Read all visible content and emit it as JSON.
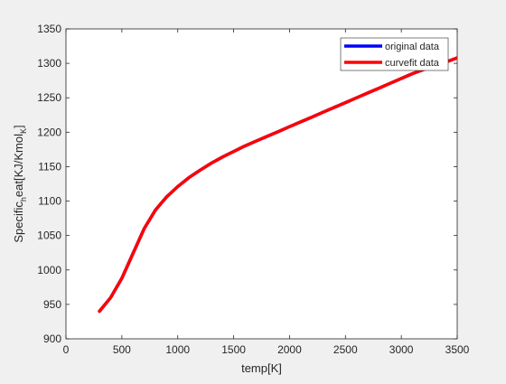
{
  "chart_data": {
    "type": "line",
    "title": "",
    "xlabel": "temp[K]",
    "ylabel_parts": [
      "Specific",
      "h",
      "eat[KJ/Kmol",
      "K",
      "]"
    ],
    "xlim": [
      0,
      3500
    ],
    "ylim": [
      900,
      1350
    ],
    "xticks": [
      0,
      500,
      1000,
      1500,
      2000,
      2500,
      3000,
      3500
    ],
    "yticks": [
      900,
      950,
      1000,
      1050,
      1100,
      1150,
      1200,
      1250,
      1300,
      1350
    ],
    "grid": false,
    "legend_position": "top-right",
    "series": [
      {
        "name": "original data",
        "color": "#0000ff",
        "x": [
          300,
          400,
          500,
          600,
          700,
          800,
          900,
          1000,
          1100,
          1200,
          1300,
          1400,
          1500,
          1600,
          1700,
          1800,
          1900,
          2000,
          2100,
          2200,
          2300,
          2400,
          2500,
          2600,
          2700,
          2800,
          2900,
          3000,
          3100,
          3200,
          3300,
          3400,
          3500
        ],
        "y": [
          940,
          960,
          988,
          1024,
          1060,
          1087,
          1106,
          1121,
          1134,
          1145,
          1155,
          1164,
          1172,
          1180,
          1187,
          1194,
          1201,
          1208,
          1215,
          1222,
          1229,
          1236,
          1243,
          1250,
          1257,
          1264,
          1271,
          1278,
          1285,
          1291,
          1296,
          1302,
          1308
        ]
      },
      {
        "name": "curvefit data",
        "color": "#ff0000",
        "x": [
          300,
          400,
          500,
          600,
          700,
          800,
          900,
          1000,
          1100,
          1200,
          1300,
          1400,
          1500,
          1600,
          1700,
          1800,
          1900,
          2000,
          2100,
          2200,
          2300,
          2400,
          2500,
          2600,
          2700,
          2800,
          2900,
          3000,
          3100,
          3200,
          3300,
          3400,
          3500
        ],
        "y": [
          940,
          960,
          988,
          1024,
          1060,
          1087,
          1106,
          1121,
          1134,
          1145,
          1155,
          1164,
          1172,
          1180,
          1187,
          1194,
          1201,
          1208,
          1215,
          1222,
          1229,
          1236,
          1243,
          1250,
          1257,
          1264,
          1271,
          1278,
          1285,
          1291,
          1296,
          1302,
          1308
        ]
      }
    ]
  }
}
